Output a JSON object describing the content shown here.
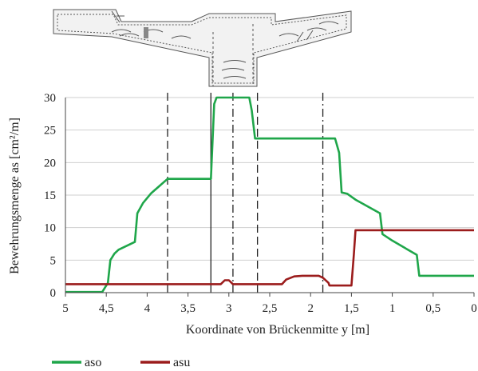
{
  "colors": {
    "aso": "#1fa64a",
    "asu": "#9b1c1c",
    "vline": "#222222",
    "grid": "#cfcfcf",
    "drawing": "#555555"
  },
  "cross_section": {
    "icon": "bridge-cross-section-drawing"
  },
  "chart_data": {
    "type": "line",
    "xlabel": "Koordinate von Brückenmitte y [m]",
    "ylabel": "Bewehrungsmenge as [cm²/m]",
    "xlim": [
      5,
      0
    ],
    "ylim": [
      0,
      30
    ],
    "x_reversed": true,
    "grid": "horizontal",
    "legend_position": "bottom-left",
    "x_ticks": [
      5,
      4.5,
      4,
      3.5,
      3,
      2.5,
      2,
      1.5,
      1,
      0.5,
      0
    ],
    "x_tick_labels": [
      "5",
      "4,5",
      "4",
      "3,5",
      "3",
      "2,5",
      "2",
      "1,5",
      "1",
      "0,5",
      "0"
    ],
    "y_ticks": [
      0,
      5,
      10,
      15,
      20,
      25,
      30
    ],
    "y_tick_labels": [
      "0",
      "5",
      "10",
      "15",
      "20",
      "25",
      "30"
    ],
    "vertical_lines": [
      {
        "x": 3.75,
        "style": "dashed"
      },
      {
        "x": 3.22,
        "style": "solid"
      },
      {
        "x": 2.95,
        "style": "dashdot"
      },
      {
        "x": 2.65,
        "style": "dashed"
      },
      {
        "x": 1.85,
        "style": "dashdot"
      }
    ],
    "series": [
      {
        "name": "aso",
        "x": [
          5.0,
          4.55,
          4.48,
          4.45,
          4.4,
          4.35,
          4.25,
          4.15,
          4.12,
          4.05,
          3.95,
          3.85,
          3.75,
          3.5,
          3.22,
          3.18,
          3.15,
          2.75,
          2.72,
          2.68,
          2.68,
          2.3,
          1.7,
          1.65,
          1.62,
          1.55,
          1.45,
          1.15,
          1.12,
          1.0,
          0.7,
          0.67,
          0.5,
          0.0
        ],
        "y": [
          0.1,
          0.1,
          1.5,
          5.0,
          6.0,
          6.6,
          7.2,
          7.8,
          12.2,
          13.8,
          15.3,
          16.4,
          17.5,
          17.5,
          17.5,
          29.0,
          30.0,
          30.0,
          28.0,
          23.7,
          23.7,
          23.7,
          23.7,
          21.5,
          15.4,
          15.2,
          14.3,
          12.2,
          9.0,
          8.0,
          5.8,
          2.6,
          2.6,
          2.6
        ]
      },
      {
        "name": "asu",
        "x": [
          5.0,
          3.1,
          3.05,
          3.0,
          2.95,
          2.9,
          2.35,
          2.3,
          2.2,
          2.1,
          1.9,
          1.85,
          1.78,
          1.77,
          1.5,
          1.47,
          1.45,
          1.0,
          0.0
        ],
        "y": [
          1.3,
          1.3,
          1.9,
          1.9,
          1.3,
          1.3,
          1.3,
          2.0,
          2.5,
          2.6,
          2.6,
          2.3,
          1.5,
          1.1,
          1.1,
          6.0,
          9.6,
          9.6,
          9.6
        ]
      }
    ]
  }
}
